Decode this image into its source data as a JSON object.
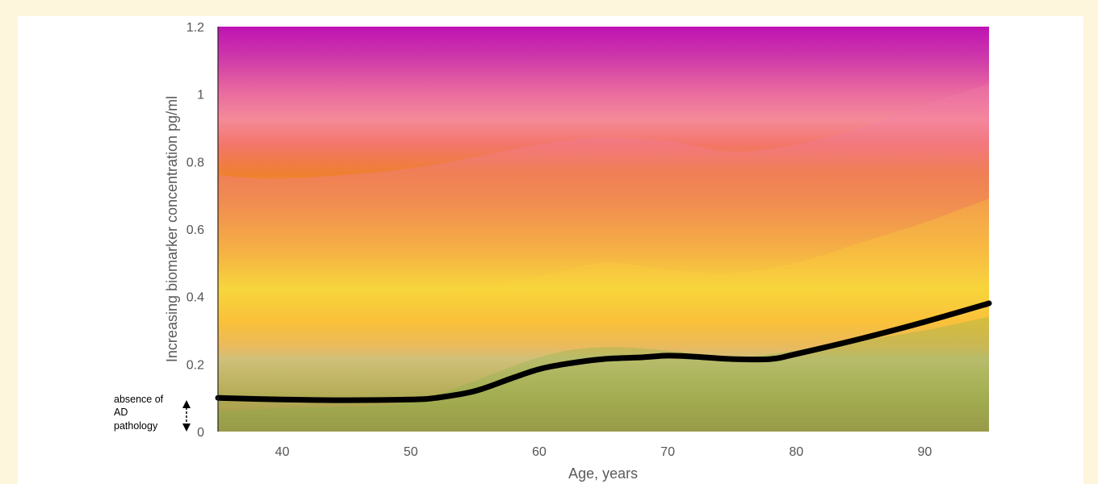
{
  "chart_data": {
    "type": "area",
    "title": "",
    "xlabel": "Age, years",
    "ylabel": "Increasing biomarker concentration pg/ml",
    "xlim": [
      35,
      95
    ],
    "ylim": [
      0,
      1.2
    ],
    "x_ticks": [
      "40",
      "50",
      "60",
      "70",
      "80",
      "90"
    ],
    "y_ticks": [
      "0",
      "0.2",
      "0.4",
      "0.6",
      "0.8",
      "1",
      "1.2"
    ],
    "annotation": {
      "lines": [
        "absence of",
        "AD",
        "pathology"
      ]
    },
    "bands": [
      {
        "color": "#f27fa8",
        "x": [
          35,
          40,
          50,
          60,
          65,
          70,
          75,
          80,
          85,
          90,
          95
        ],
        "y": [
          0.76,
          0.75,
          0.78,
          0.85,
          0.87,
          0.86,
          0.83,
          0.85,
          0.9,
          0.97,
          1.03
        ]
      },
      {
        "color": "#fcd33b",
        "x": [
          35,
          40,
          50,
          60,
          65,
          70,
          75,
          80,
          85,
          90,
          95
        ],
        "y": [
          0.41,
          0.4,
          0.41,
          0.46,
          0.5,
          0.48,
          0.47,
          0.5,
          0.56,
          0.62,
          0.69
        ]
      },
      {
        "color": "#7fb24a",
        "x": [
          35,
          40,
          50,
          60,
          65,
          70,
          75,
          80,
          85,
          90,
          95
        ],
        "y": [
          0.06,
          0.07,
          0.09,
          0.22,
          0.25,
          0.24,
          0.22,
          0.24,
          0.27,
          0.3,
          0.34
        ]
      }
    ],
    "series": [
      {
        "x": [
          35,
          40,
          45,
          50,
          52,
          55,
          58,
          60,
          62,
          65,
          68,
          70,
          72,
          75,
          78,
          80,
          85,
          90,
          95
        ],
        "y": [
          0.1,
          0.095,
          0.093,
          0.095,
          0.1,
          0.12,
          0.16,
          0.185,
          0.2,
          0.215,
          0.22,
          0.225,
          0.222,
          0.215,
          0.215,
          0.23,
          0.275,
          0.325,
          0.38
        ]
      }
    ],
    "grid": false,
    "legend": "none"
  }
}
